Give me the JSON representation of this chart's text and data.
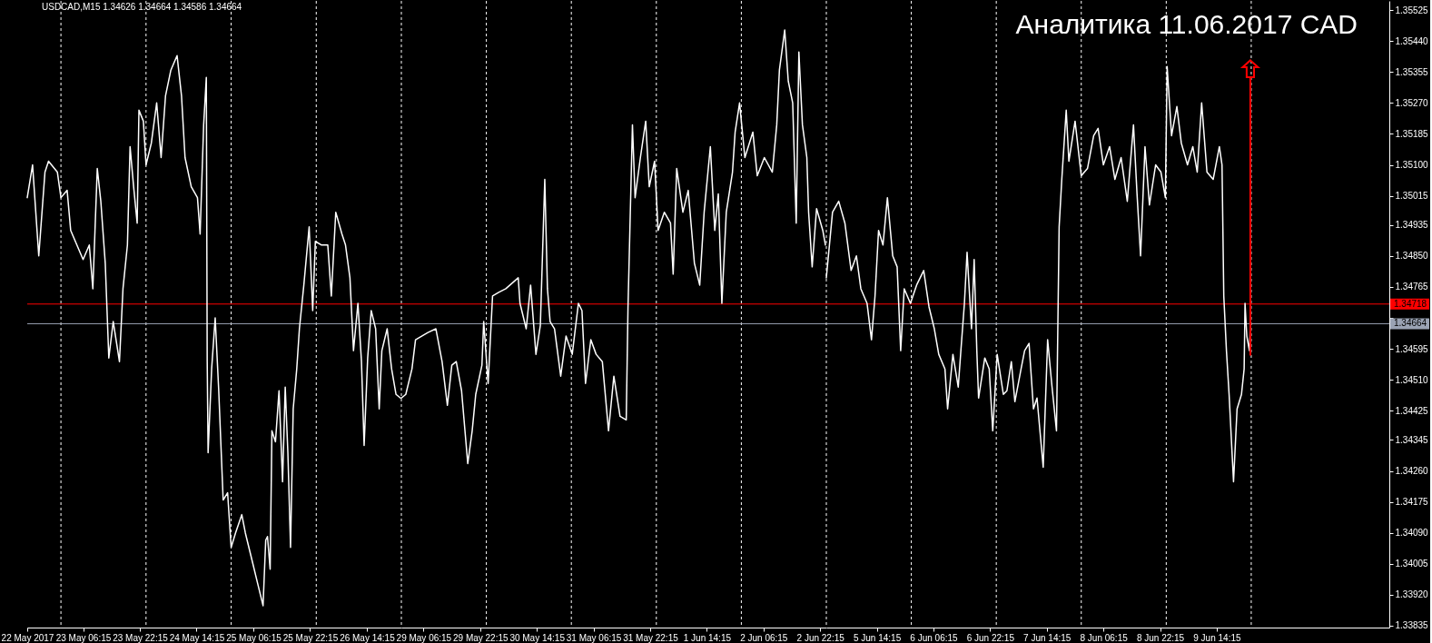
{
  "chart_data": [
    {
      "type": "line",
      "annotations": [
        "USDCAD,M15  1.34626 1.34664 1.34586 1.34664"
      ],
      "tick_labels": "x",
      "xlim": [
        "2017-05-22T14:30",
        "2017-05-27T00:00"
      ],
      "xticks": [
        {
          "value": "2017-05-22T14:30",
          "label": "22 May 2017"
        },
        {
          "value": "2017-05-23T06:15",
          "label": "23 May 06:15"
        },
        {
          "value": "2017-05-23T22:15",
          "label": "23 May 22:15"
        },
        {
          "value": "2017-05-24T14:15",
          "label": "24 May 14:15"
        },
        {
          "value": "2017-05-25T06:15",
          "label": "25 May 06:15"
        },
        {
          "value": "2017-05-25T22:15",
          "label": "25 May 22:15"
        },
        {
          "value": "2017-05-26T14:15",
          "label": "26 May 14:15"
        }
      ],
      "ylim": [
        1.3383,
        1.3555
      ],
      "series": [
        {
          "color": "#ffffff",
          "x": [
            "2017-05-22T14:30",
            "2017-05-22T16:00",
            "2017-05-22T17:45",
            "2017-05-22T19:30",
            "2017-05-22T20:30",
            "2017-05-22T23:00",
            "2017-05-23T00:00",
            "2017-05-23T01:45",
            "2017-05-23T02:45",
            "2017-05-23T04:30",
            "2017-05-23T06:15",
            "2017-05-23T08:00",
            "2017-05-23T09:00",
            "2017-05-23T10:15",
            "2017-05-23T11:15",
            "2017-05-23T12:30",
            "2017-05-23T13:30",
            "2017-05-23T14:45",
            "2017-05-23T16:30",
            "2017-05-23T17:30",
            "2017-05-23T18:45",
            "2017-05-23T19:30",
            "2017-05-23T20:30",
            "2017-05-23T21:30",
            "2017-05-23T22:00",
            "2017-05-23T23:15",
            "2017-05-24T00:00",
            "2017-05-24T01:30",
            "2017-05-24T03:00",
            "2017-05-24T04:15",
            "2017-05-24T05:30",
            "2017-05-24T07:00",
            "2017-05-24T08:45",
            "2017-05-24T10:00",
            "2017-05-24T11:00",
            "2017-05-24T12:45",
            "2017-05-24T14:30",
            "2017-05-24T15:15",
            "2017-05-24T16:15",
            "2017-05-24T17:00",
            "2017-05-24T17:15",
            "2017-05-24T17:30",
            "2017-05-24T18:30",
            "2017-05-24T19:30",
            "2017-05-24T20:30",
            "2017-05-24T21:45",
            "2017-05-24T23:00",
            "2017-05-25T00:00",
            "2017-05-25T01:15",
            "2017-05-25T03:00",
            "2017-05-25T04:00",
            "2017-05-25T05:15",
            "2017-05-25T06:15",
            "2017-05-25T07:30",
            "2017-05-25T09:00",
            "2017-05-25T09:45",
            "2017-05-25T10:15",
            "2017-05-25T11:00",
            "2017-05-25T11:30",
            "2017-05-25T12:30",
            "2017-05-25T13:30",
            "2017-05-25T14:30",
            "2017-05-25T15:15",
            "2017-05-25T16:00",
            "2017-05-25T16:45",
            "2017-05-25T17:30",
            "2017-05-25T18:30",
            "2017-05-25T19:15",
            "2017-05-25T20:30",
            "2017-05-25T22:00",
            "2017-05-25T23:00",
            "2017-05-25T23:45",
            "2017-05-26T01:30",
            "2017-05-26T03:15",
            "2017-05-26T04:15",
            "2017-05-26T05:30",
            "2017-05-26T07:15",
            "2017-05-26T08:15",
            "2017-05-26T09:30",
            "2017-05-26T10:30",
            "2017-05-26T11:45",
            "2017-05-26T12:45",
            "2017-05-26T13:30",
            "2017-05-26T14:30",
            "2017-05-26T15:30",
            "2017-05-26T16:45",
            "2017-05-26T17:45",
            "2017-05-26T18:30",
            "2017-05-26T20:00",
            "2017-05-26T21:15",
            "2017-05-26T22:30",
            "2017-05-26T23:45"
          ],
          "values": [
            1.3501,
            1.351,
            1.3485,
            1.3508,
            1.3511,
            1.3508,
            1.3501,
            1.3503,
            1.3492,
            1.3488,
            1.3484,
            1.3488,
            1.3476,
            1.3509,
            1.35,
            1.3483,
            1.3457,
            1.3467,
            1.3456,
            1.3476,
            1.3488,
            1.3515,
            1.3504,
            1.3494,
            1.3525,
            1.3522,
            1.351,
            1.3516,
            1.3527,
            1.3512,
            1.3529,
            1.3536,
            1.354,
            1.3529,
            1.3512,
            1.3504,
            1.3501,
            1.3491,
            1.3521,
            1.3534,
            1.3456,
            1.3431,
            1.3454,
            1.3468,
            1.3448,
            1.3418,
            1.342,
            1.3405,
            1.3409,
            1.3414,
            1.3409,
            1.3404,
            1.34,
            1.3395,
            1.3389,
            1.3407,
            1.3408,
            1.3399,
            1.3437,
            1.3434,
            1.3448,
            1.3423,
            1.3449,
            1.3431,
            1.3405,
            1.3443,
            1.3454,
            1.3465,
            1.3477,
            1.3493,
            1.347,
            1.3489,
            1.3488,
            1.3488,
            1.3474,
            1.3497,
            1.3491,
            1.3488,
            1.3479,
            1.3459,
            1.3472,
            1.3456,
            1.3433,
            1.3457,
            1.347,
            1.3465,
            1.3443,
            1.3459,
            1.3465,
            1.3454,
            1.3447,
            1.3446
          ]
        }
      ],
      "ref_lines": [
        {
          "axis": "x",
          "value": "2017-05-23",
          "color": "#ffffff",
          "line_style": "dashed"
        },
        {
          "axis": "x",
          "value": "2017-05-24",
          "color": "#ffffff",
          "line_style": "dashed"
        },
        {
          "axis": "x",
          "value": "2017-05-25",
          "color": "#ffffff",
          "line_style": "dashed"
        },
        {
          "axis": "x",
          "value": "2017-05-26",
          "color": "#ffffff",
          "line_style": "dashed"
        },
        {
          "axis": "y",
          "value": 1.34718,
          "color": "#ff0000"
        },
        {
          "axis": "y",
          "value": 1.34664,
          "color": "#9aa3b4"
        }
      ]
    },
    {
      "type": "line",
      "tick_labels": "x",
      "xlim": [
        "2017-05-29T00:00",
        "2017-06-03T00:00"
      ],
      "xticks": [
        {
          "value": "2017-05-29T06:15",
          "label": "29 May 06:15"
        },
        {
          "value": "2017-05-29T22:15",
          "label": "29 May 22:15"
        },
        {
          "value": "2017-05-30T14:15",
          "label": "30 May 14:15"
        },
        {
          "value": "2017-05-31T06:15",
          "label": "31 May 06:15"
        },
        {
          "value": "2017-05-31T22:15",
          "label": "31 May 22:15"
        },
        {
          "value": "2017-06-01T14:15",
          "label": "1 Jun 14:15"
        },
        {
          "value": "2017-06-02T06:15",
          "label": "2 Jun 06:15"
        },
        {
          "value": "2017-06-02T22:15",
          "label": "2 Jun 22:15"
        }
      ],
      "ylim": [
        1.3383,
        1.3555
      ],
      "series": [
        {
          "color": "#ffffff",
          "x": [
            "2017-05-29T00:00",
            "2017-05-29T01:15",
            "2017-05-29T03:00",
            "2017-05-29T04:00",
            "2017-05-29T05:45",
            "2017-05-29T07:30",
            "2017-05-29T09:45",
            "2017-05-29T11:30",
            "2017-05-29T13:00",
            "2017-05-29T14:15",
            "2017-05-29T15:30",
            "2017-05-29T17:00",
            "2017-05-29T18:45",
            "2017-05-29T20:00",
            "2017-05-29T21:00",
            "2017-05-29T22:45",
            "2017-05-29T23:15",
            "2017-05-30T00:30",
            "2017-05-30T01:45",
            "2017-05-30T03:30",
            "2017-05-30T05:30",
            "2017-05-30T09:00",
            "2017-05-30T09:30",
            "2017-05-30T11:15",
            "2017-05-30T12:30",
            "2017-05-30T14:00",
            "2017-05-30T15:15",
            "2017-05-30T16:30",
            "2017-05-30T17:15",
            "2017-05-30T18:00",
            "2017-05-30T19:15",
            "2017-05-30T21:00",
            "2017-05-30T22:30",
            "2017-05-31T00:15",
            "2017-05-31T02:00",
            "2017-05-31T03:00",
            "2017-05-31T04:00",
            "2017-05-31T05:30",
            "2017-05-31T07:00",
            "2017-05-31T08:45",
            "2017-05-31T10:30",
            "2017-05-31T12:00",
            "2017-05-31T13:45",
            "2017-05-31T15:30",
            "2017-05-31T16:00",
            "2017-05-31T17:15",
            "2017-05-31T18:00",
            "2017-05-31T19:30",
            "2017-05-31T21:00",
            "2017-05-31T22:00",
            "2017-05-31T23:30",
            "2017-06-01T00:30",
            "2017-06-01T02:15",
            "2017-06-01T04:00",
            "2017-06-01T04:45",
            "2017-06-01T05:45",
            "2017-06-01T07:30",
            "2017-06-01T09:00",
            "2017-06-01T10:45",
            "2017-06-01T12:15",
            "2017-06-01T13:30",
            "2017-06-01T15:15",
            "2017-06-01T16:30",
            "2017-06-01T17:30",
            "2017-06-01T18:30",
            "2017-06-01T19:45",
            "2017-06-01T21:30",
            "2017-06-01T22:15",
            "2017-06-01T23:30",
            "2017-06-02T01:00",
            "2017-06-02T03:15",
            "2017-06-02T04:30",
            "2017-06-02T06:30",
            "2017-06-02T08:45",
            "2017-06-02T10:00",
            "2017-06-02T10:45",
            "2017-06-02T12:15",
            "2017-06-02T13:15",
            "2017-06-02T14:30",
            "2017-06-02T15:30",
            "2017-06-02T16:15",
            "2017-06-02T17:15",
            "2017-06-02T18:30",
            "2017-06-02T19:00",
            "2017-06-02T20:00",
            "2017-06-02T21:15",
            "2017-06-02T23:00",
            "2017-06-02T23:45"
          ],
          "values": [
            1.3446,
            1.3447,
            1.3454,
            1.3462,
            1.3463,
            1.3464,
            1.3465,
            1.3456,
            1.3444,
            1.3455,
            1.3456,
            1.3448,
            1.3428,
            1.3437,
            1.3447,
            1.3455,
            1.3467,
            1.345,
            1.3474,
            1.3475,
            1.3476,
            1.3479,
            1.3472,
            1.3465,
            1.3477,
            1.3458,
            1.3466,
            1.3506,
            1.3476,
            1.3467,
            1.3465,
            1.3452,
            1.3463,
            1.3458,
            1.3472,
            1.347,
            1.345,
            1.3462,
            1.3458,
            1.3456,
            1.3437,
            1.3452,
            1.3441,
            1.344,
            1.3471,
            1.3521,
            1.3501,
            1.3512,
            1.3522,
            1.3504,
            1.3511,
            1.3492,
            1.3497,
            1.3494,
            1.348,
            1.3509,
            1.3497,
            1.3503,
            1.3483,
            1.3477,
            1.3497,
            1.3515,
            1.3492,
            1.3502,
            1.3472,
            1.3497,
            1.3508,
            1.3519,
            1.3527,
            1.3512,
            1.3519,
            1.3507,
            1.3512,
            1.3508,
            1.3521,
            1.3536,
            1.3547,
            1.3533,
            1.3527,
            1.3494,
            1.3541,
            1.3521,
            1.3512,
            1.3497,
            1.3482,
            1.3498,
            1.3492,
            1.3488
          ]
        }
      ],
      "ref_lines": [
        {
          "axis": "x",
          "value": "2017-05-29",
          "color": "#ffffff",
          "line_style": "dashed"
        },
        {
          "axis": "x",
          "value": "2017-05-30",
          "color": "#ffffff",
          "line_style": "dashed"
        },
        {
          "axis": "x",
          "value": "2017-05-31",
          "color": "#ffffff",
          "line_style": "dashed"
        },
        {
          "axis": "x",
          "value": "2017-06-01",
          "color": "#ffffff",
          "line_style": "dashed"
        },
        {
          "axis": "x",
          "value": "2017-06-02",
          "color": "#ffffff",
          "line_style": "dashed"
        },
        {
          "axis": "y",
          "value": 1.34718,
          "color": "#ff0000"
        },
        {
          "axis": "y",
          "value": 1.34664,
          "color": "#9aa3b4"
        }
      ]
    },
    {
      "type": "line",
      "title": "Аналитика 11.06.2017 CAD",
      "xlim": [
        "2017-06-05T00:00",
        "2017-06-11T15:00"
      ],
      "xticks": [
        {
          "value": "2017-06-05T14:15",
          "label": "5 Jun 14:15"
        },
        {
          "value": "2017-06-06T06:15",
          "label": "6 Jun 06:15"
        },
        {
          "value": "2017-06-06T22:15",
          "label": "6 Jun 22:15"
        },
        {
          "value": "2017-06-07T14:15",
          "label": "7 Jun 14:15"
        },
        {
          "value": "2017-06-08T06:15",
          "label": "8 Jun 06:15"
        },
        {
          "value": "2017-06-08T22:15",
          "label": "8 Jun 22:15"
        },
        {
          "value": "2017-06-09T14:15",
          "label": "9 Jun 14:15"
        }
      ],
      "ylim": [
        1.3383,
        1.3555
      ],
      "yticks": [
        1.35525,
        {
          "value": 1.3544,
          "label": "1.35440"
        },
        1.35355,
        {
          "value": 1.3527,
          "label": "1.35270"
        },
        1.35185,
        {
          "value": 1.351,
          "label": "1.35100"
        },
        1.35015,
        1.34935,
        {
          "value": 1.3485,
          "label": "1.34850"
        },
        1.34765,
        {
          "value": 1.3468,
          "label": null
        },
        1.34595,
        {
          "value": 1.3451,
          "label": "1.34510"
        },
        1.34425,
        1.34345,
        {
          "value": 1.3426,
          "label": "1.34260"
        },
        1.34175,
        {
          "value": 1.3409,
          "label": "1.34090"
        },
        1.34005,
        {
          "value": 1.3392,
          "label": "1.33920"
        },
        1.33835
      ],
      "series": [
        {
          "color": "#ffffff",
          "x": [
            "2017-06-05T00:00",
            "2017-06-05T01:45",
            "2017-06-05T03:30",
            "2017-06-05T05:15",
            "2017-06-05T07:00",
            "2017-06-05T08:30",
            "2017-06-05T09:45",
            "2017-06-05T11:30",
            "2017-06-05T12:45",
            "2017-06-05T13:45",
            "2017-06-05T14:45",
            "2017-06-05T16:00",
            "2017-06-05T17:15",
            "2017-06-05T18:45",
            "2017-06-05T20:00",
            "2017-06-05T21:00",
            "2017-06-05T22:00",
            "2017-06-05T23:45",
            "2017-06-06T01:30",
            "2017-06-06T03:30",
            "2017-06-06T05:00",
            "2017-06-06T06:30",
            "2017-06-06T07:45",
            "2017-06-06T09:30",
            "2017-06-06T10:15",
            "2017-06-06T11:45",
            "2017-06-06T13:15",
            "2017-06-06T14:00",
            "2017-06-06T15:00",
            "2017-06-06T15:45",
            "2017-06-06T17:00",
            "2017-06-06T17:45",
            "2017-06-06T18:30",
            "2017-06-06T19:00",
            "2017-06-06T20:45",
            "2017-06-06T22:00",
            "2017-06-06T23:00",
            "2017-06-07T00:15",
            "2017-06-07T02:00",
            "2017-06-07T03:00",
            "2017-06-07T04:15",
            "2017-06-07T05:15",
            "2017-06-07T07:00",
            "2017-06-07T08:00",
            "2017-06-07T09:15",
            "2017-06-07T10:30",
            "2017-06-07T11:30",
            "2017-06-07T13:15",
            "2017-06-07T14:30",
            "2017-06-07T15:45",
            "2017-06-07T17:00",
            "2017-06-07T17:45",
            "2017-06-07T18:30",
            "2017-06-07T19:45",
            "2017-06-07T20:30",
            "2017-06-07T22:15",
            "2017-06-08T00:00",
            "2017-06-08T01:45",
            "2017-06-08T03:30",
            "2017-06-08T04:45",
            "2017-06-08T06:15",
            "2017-06-08T08:00",
            "2017-06-08T09:30",
            "2017-06-08T11:15",
            "2017-06-08T13:00",
            "2017-06-08T14:45",
            "2017-06-08T15:45",
            "2017-06-08T16:45",
            "2017-06-08T18:00",
            "2017-06-08T19:15",
            "2017-06-08T21:00",
            "2017-06-08T22:30",
            "2017-06-08T23:45",
            "2017-06-09T00:15",
            "2017-06-09T01:30",
            "2017-06-09T03:00",
            "2017-06-09T04:15",
            "2017-06-09T06:00",
            "2017-06-09T07:30",
            "2017-06-09T08:45",
            "2017-06-09T10:00",
            "2017-06-09T11:30",
            "2017-06-09T13:15",
            "2017-06-09T15:00",
            "2017-06-09T15:45",
            "2017-06-09T16:15",
            "2017-06-09T17:00",
            "2017-06-09T17:45",
            "2017-06-09T19:00",
            "2017-06-09T20:00",
            "2017-06-09T21:15",
            "2017-06-09T22:00",
            "2017-06-09T22:15",
            "2017-06-09T22:45",
            "2017-06-09T23:30",
            "2017-06-09T23:45"
          ],
          "values": [
            1.3479,
            1.3497,
            1.35,
            1.3494,
            1.3481,
            1.3485,
            1.3476,
            1.3472,
            1.3462,
            1.3474,
            1.3492,
            1.3488,
            1.3501,
            1.3485,
            1.3482,
            1.3459,
            1.3476,
            1.3472,
            1.3477,
            1.3481,
            1.3471,
            1.3465,
            1.3458,
            1.3454,
            1.3443,
            1.3458,
            1.3449,
            1.3459,
            1.3472,
            1.3486,
            1.3465,
            1.3484,
            1.3459,
            1.3446,
            1.3457,
            1.3454,
            1.3437,
            1.3458,
            1.3447,
            1.3448,
            1.3456,
            1.3445,
            1.3454,
            1.3459,
            1.3461,
            1.3443,
            1.3446,
            1.3427,
            1.3462,
            1.3449,
            1.3437,
            1.3493,
            1.3506,
            1.3525,
            1.3511,
            1.3522,
            1.3507,
            1.3509,
            1.3518,
            1.352,
            1.351,
            1.3515,
            1.3506,
            1.3512,
            1.35,
            1.3521,
            1.3502,
            1.3485,
            1.3515,
            1.3499,
            1.351,
            1.3508,
            1.3501,
            1.3537,
            1.3518,
            1.3526,
            1.3516,
            1.351,
            1.3515,
            1.3508,
            1.3527,
            1.3508,
            1.3506,
            1.3515,
            1.351,
            1.3474,
            1.3459,
            1.3447,
            1.3423,
            1.3443,
            1.3447,
            1.3454,
            1.3472,
            1.3463,
            1.3459,
            1.34664
          ]
        }
      ],
      "ref_lines": [
        {
          "axis": "x",
          "value": "2017-06-05",
          "color": "#ffffff",
          "line_style": "dashed"
        },
        {
          "axis": "x",
          "value": "2017-06-06",
          "color": "#ffffff",
          "line_style": "dashed"
        },
        {
          "axis": "x",
          "value": "2017-06-07",
          "color": "#ffffff",
          "line_style": "dashed"
        },
        {
          "axis": "x",
          "value": "2017-06-08",
          "color": "#ffffff",
          "line_style": "dashed"
        },
        {
          "axis": "x",
          "value": "2017-06-09",
          "color": "#ffffff",
          "line_style": "dashed"
        },
        {
          "axis": "x",
          "value": "2017-06-10",
          "color": "#ffffff",
          "line_style": "dashed"
        },
        {
          "axis": "y",
          "value": 1.34718,
          "label": "1.34718",
          "color": "#ff0000"
        },
        {
          "axis": "y",
          "value": 1.34664,
          "label": "1.34664",
          "color": "#9aa3b4"
        }
      ]
    }
  ]
}
